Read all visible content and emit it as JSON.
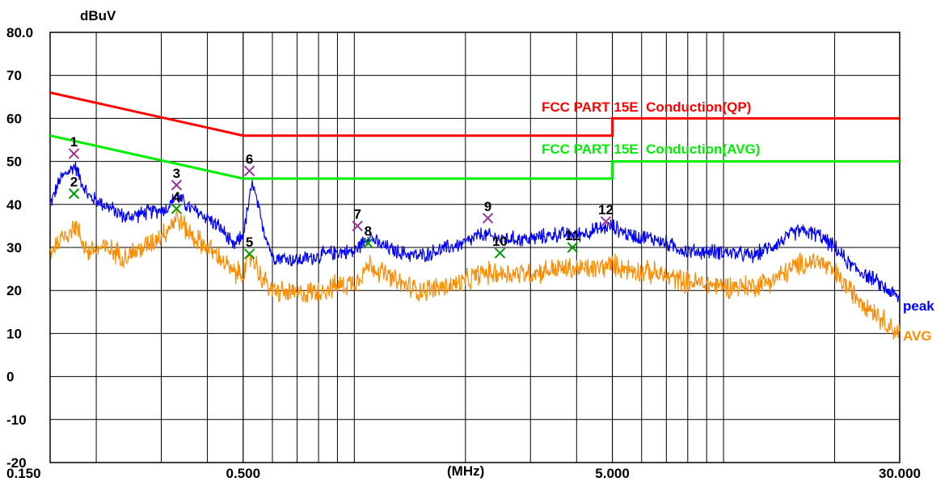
{
  "chart_data": {
    "type": "line",
    "y_unit": "dBuV",
    "x_unit": "(MHz)",
    "x_scale": "log",
    "xlim": [
      0.15,
      30
    ],
    "ylim": [
      -20,
      80
    ],
    "grid": true,
    "y_tick_labels": [
      {
        "value": 80,
        "label": "80.0"
      },
      {
        "value": 70,
        "label": "70"
      },
      {
        "value": 60,
        "label": "60"
      },
      {
        "value": 50,
        "label": "50"
      },
      {
        "value": 40,
        "label": "40"
      },
      {
        "value": 30,
        "label": "30"
      },
      {
        "value": 20,
        "label": "20"
      },
      {
        "value": 10,
        "label": "10"
      },
      {
        "value": 0,
        "label": "0"
      },
      {
        "value": -10,
        "label": "-10"
      },
      {
        "value": -20,
        "label": "-20"
      }
    ],
    "x_tick_labels": [
      {
        "value": 0.15,
        "label": "0.150"
      },
      {
        "value": 0.5,
        "label": "0.500"
      },
      {
        "value": 5,
        "label": "5.000"
      },
      {
        "value": 30,
        "label": "30.000"
      }
    ],
    "limits": [
      {
        "name": "FCC PART 15E  Conduction(QP)",
        "color": "#ff0000",
        "points": [
          [
            0.15,
            66
          ],
          [
            0.5,
            56
          ],
          [
            5,
            56
          ],
          [
            5,
            60
          ],
          [
            30,
            60
          ]
        ]
      },
      {
        "name": "FCC PART 15E  Conduction(AVG)",
        "color": "#00ee00",
        "points": [
          [
            0.15,
            56
          ],
          [
            0.5,
            46
          ],
          [
            5,
            46
          ],
          [
            5,
            50
          ],
          [
            30,
            50
          ]
        ]
      }
    ],
    "series": [
      {
        "name": "peak",
        "color": "#0000ff",
        "points": [
          [
            0.15,
            40
          ],
          [
            0.16,
            46
          ],
          [
            0.175,
            49
          ],
          [
            0.19,
            42
          ],
          [
            0.21,
            40
          ],
          [
            0.24,
            37
          ],
          [
            0.27,
            38
          ],
          [
            0.31,
            39
          ],
          [
            0.33,
            42
          ],
          [
            0.36,
            39
          ],
          [
            0.4,
            37
          ],
          [
            0.44,
            34
          ],
          [
            0.47,
            30
          ],
          [
            0.5,
            33
          ],
          [
            0.53,
            45
          ],
          [
            0.56,
            36
          ],
          [
            0.6,
            28
          ],
          [
            0.7,
            27
          ],
          [
            0.8,
            28
          ],
          [
            0.9,
            29
          ],
          [
            1.0,
            29
          ],
          [
            1.1,
            33
          ],
          [
            1.15,
            31
          ],
          [
            1.3,
            29
          ],
          [
            1.5,
            28
          ],
          [
            1.8,
            30
          ],
          [
            2.0,
            31
          ],
          [
            2.2,
            33
          ],
          [
            2.5,
            32
          ],
          [
            3.0,
            32
          ],
          [
            3.5,
            33
          ],
          [
            4.0,
            33
          ],
          [
            4.5,
            34
          ],
          [
            5.0,
            35
          ],
          [
            5.5,
            33
          ],
          [
            6.5,
            32
          ],
          [
            8.0,
            29
          ],
          [
            10.0,
            29
          ],
          [
            12.0,
            28
          ],
          [
            14.0,
            31
          ],
          [
            16.0,
            34
          ],
          [
            18.0,
            33
          ],
          [
            20.0,
            30
          ],
          [
            22.0,
            26
          ],
          [
            25.0,
            23
          ],
          [
            28.0,
            20
          ],
          [
            30.0,
            18
          ]
        ]
      },
      {
        "name": "AVG",
        "color": "#ff8c00",
        "points": [
          [
            0.15,
            29
          ],
          [
            0.16,
            32
          ],
          [
            0.175,
            35
          ],
          [
            0.19,
            29
          ],
          [
            0.21,
            30
          ],
          [
            0.24,
            28
          ],
          [
            0.27,
            30
          ],
          [
            0.31,
            34
          ],
          [
            0.33,
            37
          ],
          [
            0.36,
            33
          ],
          [
            0.4,
            30
          ],
          [
            0.44,
            27
          ],
          [
            0.47,
            24
          ],
          [
            0.5,
            24
          ],
          [
            0.53,
            28
          ],
          [
            0.56,
            23
          ],
          [
            0.6,
            20
          ],
          [
            0.7,
            19
          ],
          [
            0.8,
            20
          ],
          [
            0.9,
            21
          ],
          [
            1.0,
            22
          ],
          [
            1.1,
            26
          ],
          [
            1.15,
            25
          ],
          [
            1.3,
            22
          ],
          [
            1.5,
            20
          ],
          [
            1.8,
            21
          ],
          [
            2.0,
            22
          ],
          [
            2.2,
            24
          ],
          [
            2.5,
            24
          ],
          [
            3.0,
            24
          ],
          [
            3.5,
            25
          ],
          [
            4.0,
            25
          ],
          [
            4.5,
            25
          ],
          [
            5.0,
            26
          ],
          [
            5.5,
            25
          ],
          [
            6.5,
            24
          ],
          [
            8.0,
            22
          ],
          [
            10.0,
            21
          ],
          [
            12.0,
            21
          ],
          [
            14.0,
            23
          ],
          [
            16.0,
            26
          ],
          [
            18.0,
            27
          ],
          [
            20.0,
            24
          ],
          [
            22.0,
            20
          ],
          [
            25.0,
            16
          ],
          [
            28.0,
            12
          ],
          [
            30.0,
            10
          ]
        ]
      }
    ],
    "markers": [
      {
        "label": "1",
        "freq": 0.174,
        "level": 51.8,
        "symbol": "x",
        "color": "#993399"
      },
      {
        "label": "2",
        "freq": 0.174,
        "level": 42.5,
        "symbol": "x",
        "color": "#009900"
      },
      {
        "label": "3",
        "freq": 0.33,
        "level": 44.5,
        "symbol": "x",
        "color": "#993399"
      },
      {
        "label": "4",
        "freq": 0.33,
        "level": 39.0,
        "symbol": "x",
        "color": "#009900"
      },
      {
        "label": "5",
        "freq": 0.52,
        "level": 28.5,
        "symbol": "x",
        "color": "#009900"
      },
      {
        "label": "6",
        "freq": 0.52,
        "level": 47.8,
        "symbol": "x",
        "color": "#993399"
      },
      {
        "label": "7",
        "freq": 1.02,
        "level": 35.0,
        "symbol": "x",
        "color": "#993399"
      },
      {
        "label": "8",
        "freq": 1.09,
        "level": 31.0,
        "symbol": "x",
        "color": "#009900"
      },
      {
        "label": "9",
        "freq": 2.3,
        "level": 36.8,
        "symbol": "x",
        "color": "#993399"
      },
      {
        "label": "10",
        "freq": 2.48,
        "level": 28.7,
        "symbol": "x",
        "color": "#009900"
      },
      {
        "label": "11",
        "freq": 3.9,
        "level": 30.0,
        "symbol": "x",
        "color": "#009900"
      },
      {
        "label": "12",
        "freq": 4.8,
        "level": 36.0,
        "symbol": "x",
        "color": "#993399"
      }
    ]
  }
}
